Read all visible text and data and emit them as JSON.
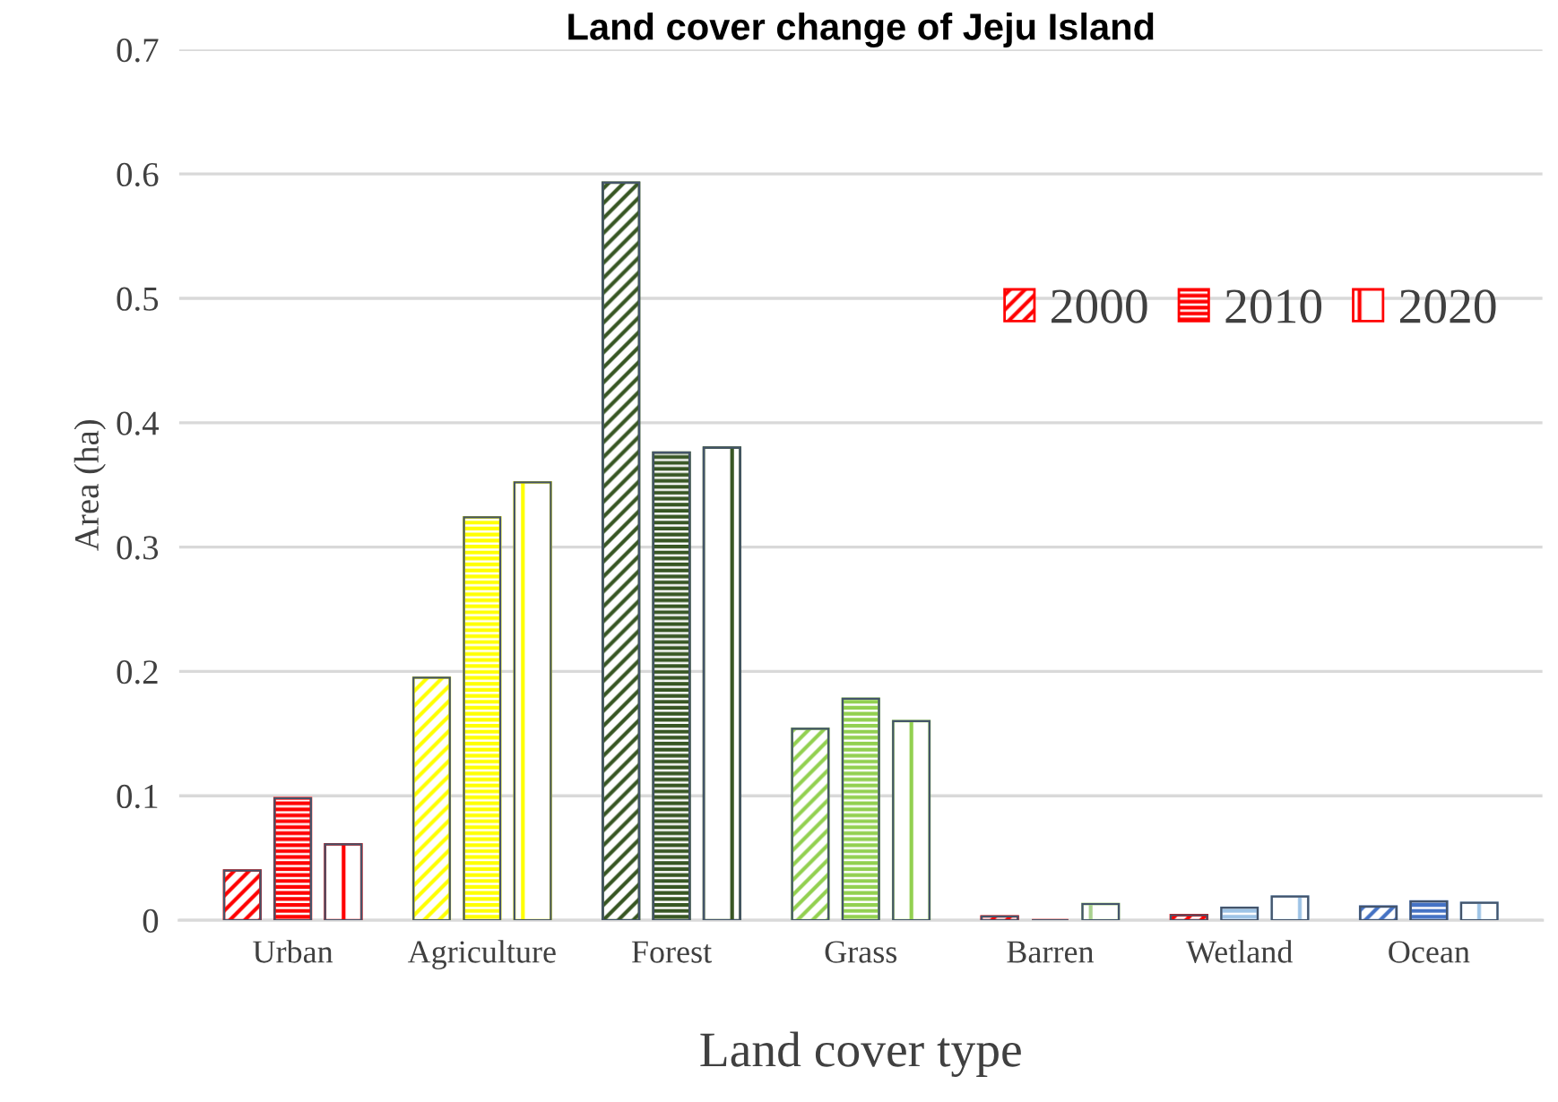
{
  "chart_data": {
    "type": "bar",
    "title": "Land cover change of Jeju Island",
    "xlabel": "Land cover type",
    "ylabel": "Area (ha)",
    "categories": [
      "Urban",
      "Agriculture",
      "Forest",
      "Grass",
      "Barren",
      "Wetland",
      "Ocean"
    ],
    "series": [
      {
        "name": "2000",
        "color": "#ff0000",
        "colors": [
          "#ff0000",
          "#ffff00",
          "#375623",
          "#92d050",
          "#ff0000",
          "#ff0000",
          "#4472c4"
        ],
        "values": [
          0.04,
          0.195,
          0.593,
          0.154,
          0.003,
          0.004,
          0.011
        ]
      },
      {
        "name": "2010",
        "color": "#ff0000",
        "colors": [
          "#ff0000",
          "#ffff00",
          "#375623",
          "#92d050",
          "#ff0000",
          "#9dc3e6",
          "#4472c4"
        ],
        "values": [
          0.098,
          0.324,
          0.376,
          0.178,
          0,
          0.01,
          0.015
        ]
      },
      {
        "name": "2020",
        "color": "#ff0000",
        "colors": [
          "#ff0000",
          "#ffff00",
          "#375623",
          "#92d050",
          "#a9d18e",
          "#9dc3e6",
          "#9dc3e6"
        ],
        "values": [
          0.061,
          0.352,
          0.38,
          0.16,
          0.013,
          0.019,
          0.014
        ]
      }
    ],
    "ylim": [
      0,
      0.7
    ],
    "yticks": [
      0,
      0.1,
      0.2,
      0.3,
      0.4,
      0.5,
      0.6,
      0.7
    ],
    "grid": "y",
    "legend": "right"
  }
}
